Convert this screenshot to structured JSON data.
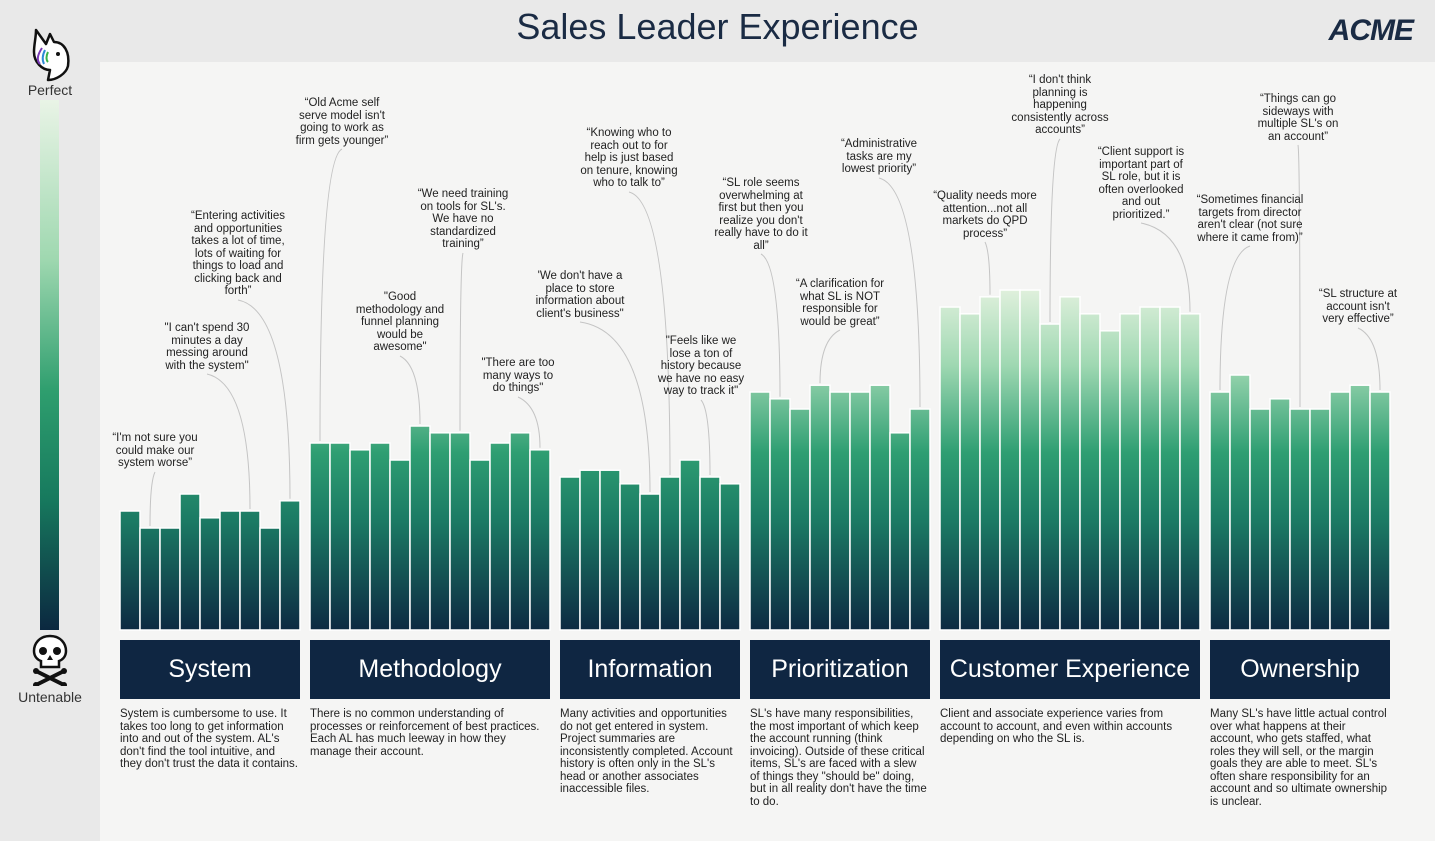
{
  "title": "Sales Leader Experience",
  "brand": "ACME",
  "scale": {
    "top_label": "Perfect",
    "bottom_label": "Untenable",
    "top_icon": "unicorn-icon",
    "bottom_icon": "skull-crossbones-icon"
  },
  "colors": {
    "bar_top": "#2f9f72",
    "bar_bottom": "#0d2a42",
    "bar_light_top": "#d6ecd3",
    "category_bg": "#0f2642"
  },
  "chart_data": {
    "type": "bar",
    "title": "Sales Leader Experience",
    "ylim": [
      0,
      10
    ],
    "categories": [
      {
        "name": "System",
        "values": [
          3.5,
          3.0,
          3.0,
          4.0,
          3.3,
          3.5,
          3.5,
          3.0,
          3.8
        ]
      },
      {
        "name": "Methodology",
        "values": [
          5.5,
          5.5,
          5.3,
          5.5,
          5.0,
          6.0,
          5.8,
          5.8,
          5.0,
          5.5,
          5.8,
          5.3
        ]
      },
      {
        "name": "Information",
        "values": [
          4.5,
          4.7,
          4.7,
          4.3,
          4.0,
          4.5,
          5.0,
          4.5,
          4.3
        ]
      },
      {
        "name": "Prioritization",
        "values": [
          7.0,
          6.8,
          6.5,
          7.2,
          7.0,
          7.0,
          7.2,
          5.8,
          6.5
        ]
      },
      {
        "name": "Customer Experience",
        "values": [
          9.5,
          9.3,
          9.8,
          10.0,
          10.0,
          9.0,
          9.8,
          9.3,
          8.8,
          9.3,
          9.5,
          9.5,
          9.3
        ]
      },
      {
        "name": "Ownership",
        "values": [
          7.0,
          7.5,
          6.5,
          6.8,
          6.5,
          6.5,
          7.0,
          7.2,
          7.0
        ]
      }
    ]
  },
  "categories": [
    {
      "name": "System",
      "description": "System is cumbersome to use. It takes too long to get information into and out of the system. AL's don't find the tool intuitive, and they don't trust the data it contains."
    },
    {
      "name": "Methodology",
      "description": "There is no common understanding of processes or reinforcement of best practices. Each AL has much leeway in how they manage their account."
    },
    {
      "name": "Information",
      "description": "Many activities and opportunities do not get entered in system. Project summaries are inconsistently completed. Account history is often only in the SL's head or another associates inaccessible files."
    },
    {
      "name": "Prioritization",
      "description": "SL's have many responsibilities, the most important of which keep the account running (think invoicing). Outside of these critical items, SL's are faced with a slew of things they \"should be\" doing, but in all reality don't have the time to do."
    },
    {
      "name": "Customer Experience",
      "description": "Client and associate experience varies from account to account, and even within accounts depending on who the SL is."
    },
    {
      "name": "Ownership",
      "description": "Many SL's have little actual control over what happens at their account, who gets staffed, what roles they will sell, or the margin goals they are able to meet. SL's often share responsibility for an account and so ultimate ownership is unclear."
    }
  ],
  "quotes": [
    {
      "cat": 0,
      "bar": 1,
      "text": "“I'm not sure you could make our system worse”"
    },
    {
      "cat": 0,
      "bar": 6,
      "text": "\"I can't spend 30 minutes a day messing around with the system\""
    },
    {
      "cat": 0,
      "bar": 8,
      "text": "“Entering activities and opportunities takes a lot of time, lots of waiting for things to load and clicking back and forth”"
    },
    {
      "cat": 1,
      "bar": 0,
      "text": "“Old Acme self serve model isn't going to work as firm gets younger”"
    },
    {
      "cat": 1,
      "bar": 5,
      "text": "\"Good methodology and funnel planning would be awesome\""
    },
    {
      "cat": 1,
      "bar": 7,
      "text": "“We need training on tools for SL's. We have no standardized training”"
    },
    {
      "cat": 1,
      "bar": 11,
      "text": "\"There are too many ways to do things\""
    },
    {
      "cat": 2,
      "bar": 4,
      "text": "'We don't have a place to store information about client's business\""
    },
    {
      "cat": 2,
      "bar": 5,
      "text": "“Knowing who to reach out to for help is just based on tenure, knowing who to talk to”"
    },
    {
      "cat": 2,
      "bar": 7,
      "text": "\"Feels like we lose a ton of history because we have no easy way to track it\""
    },
    {
      "cat": 3,
      "bar": 1,
      "text": "“SL role seems overwhelming at first but then you realize you don't really have to do it all”"
    },
    {
      "cat": 3,
      "bar": 3,
      "text": "“A clarification for what SL is NOT responsible for would be great”"
    },
    {
      "cat": 3,
      "bar": 8,
      "text": "“Administrative tasks are my lowest priority”"
    },
    {
      "cat": 4,
      "bar": 2,
      "text": "“Quality needs more attention...not all markets do QPD process”"
    },
    {
      "cat": 4,
      "bar": 5,
      "text": "“I don't think planning is happening consistently across accounts”"
    },
    {
      "cat": 4,
      "bar": 12,
      "text": "“Client support is important part of SL role, but it is often overlooked and out prioritized.”"
    },
    {
      "cat": 5,
      "bar": 0,
      "text": "“Sometimes financial targets from director aren't clear (not sure where it came from)”"
    },
    {
      "cat": 5,
      "bar": 4,
      "text": "“Things can go sideways with multiple SL's on an account”"
    },
    {
      "cat": 5,
      "bar": 8,
      "text": "“SL structure at account isn't very effective”"
    }
  ]
}
